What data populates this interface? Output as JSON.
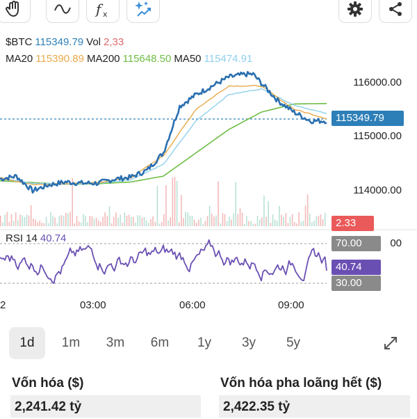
{
  "toolbar": {
    "icons": [
      "hand-pointer-icon",
      "wave-curve-icon",
      "function-fx-icon",
      "sparkle-trend-icon",
      "gear-icon",
      "share-icon"
    ]
  },
  "header": {
    "symbol": "$BTC",
    "price": "115349.79",
    "vol_label": "Vol",
    "vol_value": "2,33"
  },
  "ma_legend": {
    "ma20_label": "MA20",
    "ma20_value": "115390.89",
    "ma200_label": "MA200",
    "ma200_value": "115648.50",
    "ma50_label": "MA50",
    "ma50_value": "115474.91"
  },
  "price_axis": {
    "labels": [
      "116000.00",
      "115000.00",
      "114000.00"
    ],
    "current_badge": "115349.79",
    "volume_badge": "2.33"
  },
  "rsi": {
    "label": "RSI 14",
    "value": "40.74",
    "upper_badge": "70.00",
    "lower_badge": "30.00",
    "hidden_label": "00"
  },
  "time_axis": {
    "labels": [
      "2",
      "03:00",
      "06:00",
      "09:00"
    ]
  },
  "ranges": {
    "items": [
      "1d",
      "1m",
      "3m",
      "6m",
      "1y",
      "3y",
      "5y"
    ],
    "active": "1d"
  },
  "stats": {
    "market_cap_label": "Vốn hóa ($)",
    "market_cap_value": "2,241.42 tỷ",
    "fdv_label": "Vốn hóa pha loãng hết ($)",
    "fdv_value": "2,422.35 tỷ"
  },
  "colors": {
    "price_line": "#2a6fb0",
    "ma20": "#e9a94a",
    "ma200": "#6dbd45",
    "ma50": "#8fd0ee",
    "rsi": "#6a4fb3",
    "volume_up": "#b9e0d4",
    "volume_down": "#f3b9b9",
    "badge_blue": "#2d7fb8",
    "badge_red": "#ea5a5a",
    "badge_purple": "#6a4fb3",
    "badge_gray": "#8a8a8a"
  },
  "chart_data": {
    "type": "line",
    "x_ticks": [
      "03:00",
      "06:00",
      "09:00"
    ],
    "ylim": [
      113600,
      116350
    ],
    "price_series": [
      {
        "name": "$BTC",
        "x": [
          0,
          0.5,
          1,
          1.5,
          2,
          2.5,
          3,
          3.5,
          4,
          4.5,
          5,
          5.25,
          5.5,
          6,
          6.5,
          7,
          7.5,
          7.75,
          8,
          8.5,
          9,
          9.5,
          10
        ],
        "y": [
          114350,
          114400,
          114150,
          114250,
          114300,
          114280,
          114280,
          114350,
          114380,
          114500,
          114800,
          115200,
          115600,
          115800,
          115950,
          116100,
          116150,
          116150,
          116000,
          115700,
          115500,
          115350,
          115350
        ]
      },
      {
        "name": "MA20",
        "x": [
          0,
          1,
          2,
          3,
          4,
          5,
          6,
          7,
          8,
          9,
          10
        ],
        "y": [
          114370,
          114250,
          114270,
          114290,
          114370,
          114750,
          115550,
          115950,
          115950,
          115550,
          115390
        ]
      },
      {
        "name": "MA50",
        "x": [
          0,
          1,
          2,
          3,
          4,
          5,
          6,
          7,
          8,
          9,
          10
        ],
        "y": [
          114370,
          114280,
          114260,
          114280,
          114340,
          114600,
          115350,
          115800,
          115900,
          115620,
          115475
        ]
      },
      {
        "name": "MA200",
        "x": [
          0,
          1,
          2,
          3,
          4,
          5,
          6,
          7,
          8,
          9,
          10
        ],
        "y": [
          114320,
          114290,
          114260,
          114270,
          114300,
          114400,
          114800,
          115200,
          115500,
          115640,
          115648
        ]
      }
    ],
    "rsi_series": {
      "name": "RSI 14",
      "ylim": [
        20,
        80
      ],
      "upper": 70,
      "lower": 30,
      "last": 40.74
    }
  }
}
